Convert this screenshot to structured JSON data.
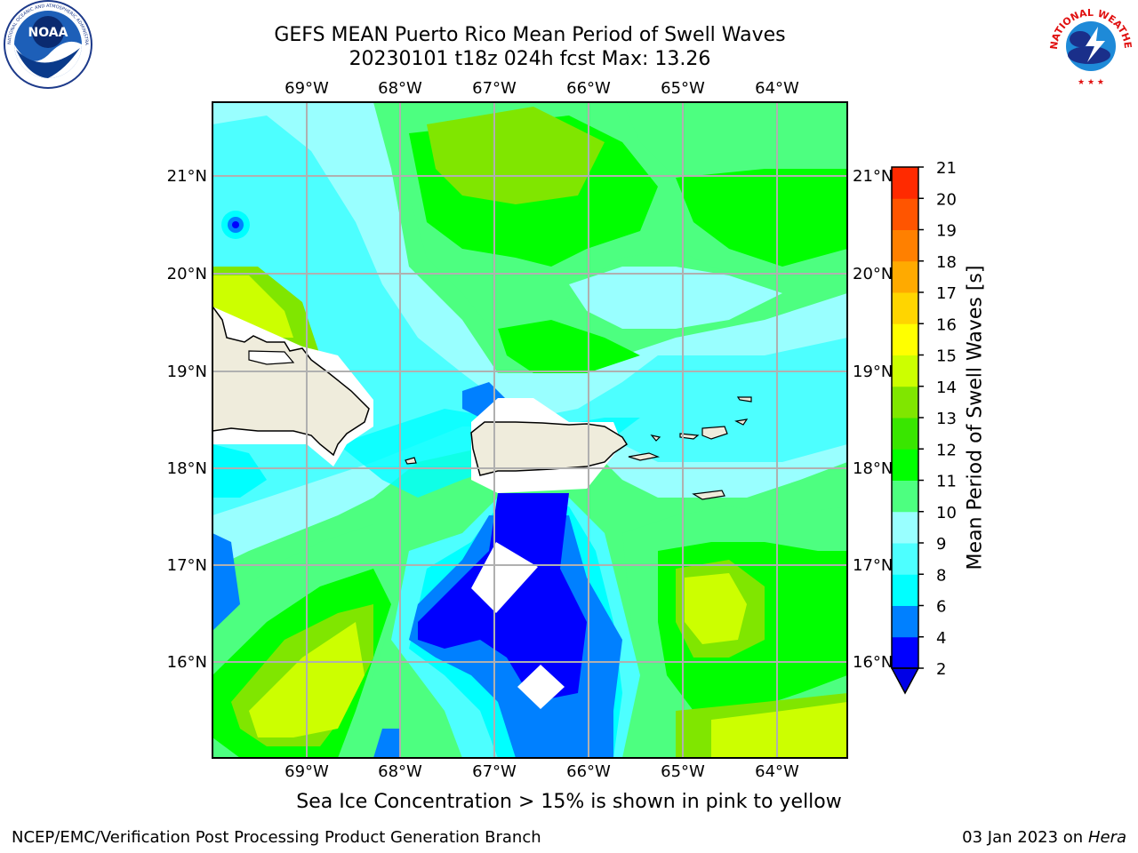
{
  "header": {
    "title_line1": "GEFS MEAN Puerto Rico Mean Period of Swell Waves",
    "title_line2": "20230101 t18z 024h fcst   Max: 13.26"
  },
  "logos": {
    "left": {
      "icon": "noaa-logo-icon",
      "text": "NOAA",
      "ring_text": "NATIONAL OCEANIC AND ATMOSPHERIC ADMINISTRATION · U.S. DEPARTMENT OF COMMERCE"
    },
    "right": {
      "icon": "nws-logo-icon",
      "ring_text": "NATIONAL WEATHER SERVICE"
    }
  },
  "map": {
    "lon_ticks": [
      "69°W",
      "68°W",
      "67°W",
      "66°W",
      "65°W",
      "64°W"
    ],
    "lat_ticks": [
      "21°N",
      "20°N",
      "19°N",
      "18°N",
      "17°N",
      "16°N"
    ],
    "land_color": "#efecdc",
    "grid_color": "#b0b0b0"
  },
  "colorbar": {
    "label": "Mean Period of Swell Waves [s]",
    "tick_labels": [
      "2",
      "4",
      "6",
      "8",
      "9",
      "10",
      "11",
      "12",
      "13",
      "14",
      "15",
      "16",
      "17",
      "18",
      "19",
      "20",
      "21"
    ],
    "colors": [
      "#0000ff",
      "#0080ff",
      "#00ffff",
      "#4dffff",
      "#99ffff",
      "#4dff80",
      "#00ff00",
      "#39e600",
      "#80e600",
      "#ccff00",
      "#ffff00",
      "#ffd500",
      "#ffaa00",
      "#ff8000",
      "#ff5500",
      "#ff2a00",
      "#ff0000"
    ],
    "under_color": "#0000e6"
  },
  "subtitle": "Sea Ice Concentration > 15% is shown in pink to yellow",
  "footer": {
    "left": "NCEP/EMC/Verification Post Processing Product Generation Branch",
    "right_date": "03 Jan 2023 on ",
    "right_host": "Hera"
  }
}
